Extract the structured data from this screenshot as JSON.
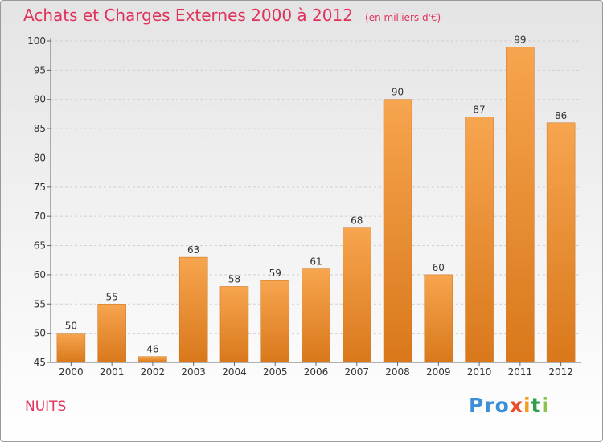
{
  "header": {
    "title": "Achats et Charges Externes 2000 à 2012",
    "unit": "(en milliers d'€)"
  },
  "footer": {
    "place": "NUITS",
    "logo": [
      "Pro",
      "x",
      "i",
      "t",
      "i"
    ]
  },
  "colors": {
    "title": "#e0315a",
    "bar_light": "#f7a54f",
    "bar_dark": "#d9781b",
    "grid": "#d0d0d0",
    "axis": "#666666",
    "text": "#333333"
  },
  "chart_data": {
    "type": "bar",
    "categories": [
      "2000",
      "2001",
      "2002",
      "2003",
      "2004",
      "2005",
      "2006",
      "2007",
      "2008",
      "2009",
      "2010",
      "2011",
      "2012"
    ],
    "values": [
      50,
      55,
      46,
      63,
      58,
      59,
      61,
      68,
      90,
      60,
      87,
      99,
      86
    ],
    "value_labels": [
      "50",
      "55",
      "46",
      "63",
      "58",
      "59",
      "61",
      "68",
      "90",
      "60",
      "87",
      "99",
      "86"
    ],
    "yticks": [
      "45",
      "50",
      "55",
      "60",
      "65",
      "70",
      "75",
      "80",
      "85",
      "90",
      "95",
      "100"
    ],
    "ylim": [
      45,
      100
    ],
    "grid": true,
    "xlabel": "",
    "ylabel": ""
  }
}
